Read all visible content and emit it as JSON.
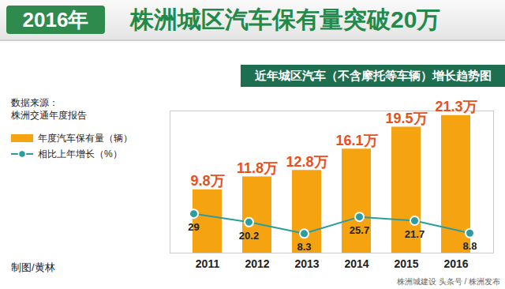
{
  "chart_data": {
    "type": "bar",
    "header_tag": "2016年",
    "title": "株洲城区汽车保有量突破20万",
    "subtitle": "近年城区汽车（不含摩托等车辆）增长趋势图",
    "source": [
      "数据来源：",
      "株洲交通年度报告"
    ],
    "credit": "制图/黄林",
    "watermark": [
      "株洲城建设",
      "头条号 / 株洲发布"
    ],
    "categories": [
      "2011",
      "2012",
      "2013",
      "2014",
      "2015",
      "2016"
    ],
    "series": [
      {
        "name": "年度汽车保有量（辆）",
        "type": "bar",
        "color": "#f5a311",
        "values": [
          9.8,
          11.8,
          12.8,
          16.1,
          19.5,
          21.3
        ],
        "value_labels": [
          "9.8万",
          "11.8万",
          "12.8万",
          "16.1万",
          "19.5万",
          "21.3万"
        ]
      },
      {
        "name": "相比上年增长（%）",
        "type": "line",
        "axis": "y2",
        "color": "#2a9d9e",
        "marker": "circle",
        "values": [
          29,
          20.2,
          8.3,
          25.7,
          21.7,
          8.8
        ]
      }
    ],
    "ylim": [
      0,
      22
    ],
    "yticks": [],
    "y2lim": [
      -12,
      136
    ],
    "y2ticks": [],
    "data_labels": true,
    "tick_labels": "x",
    "legend": "top-left"
  }
}
